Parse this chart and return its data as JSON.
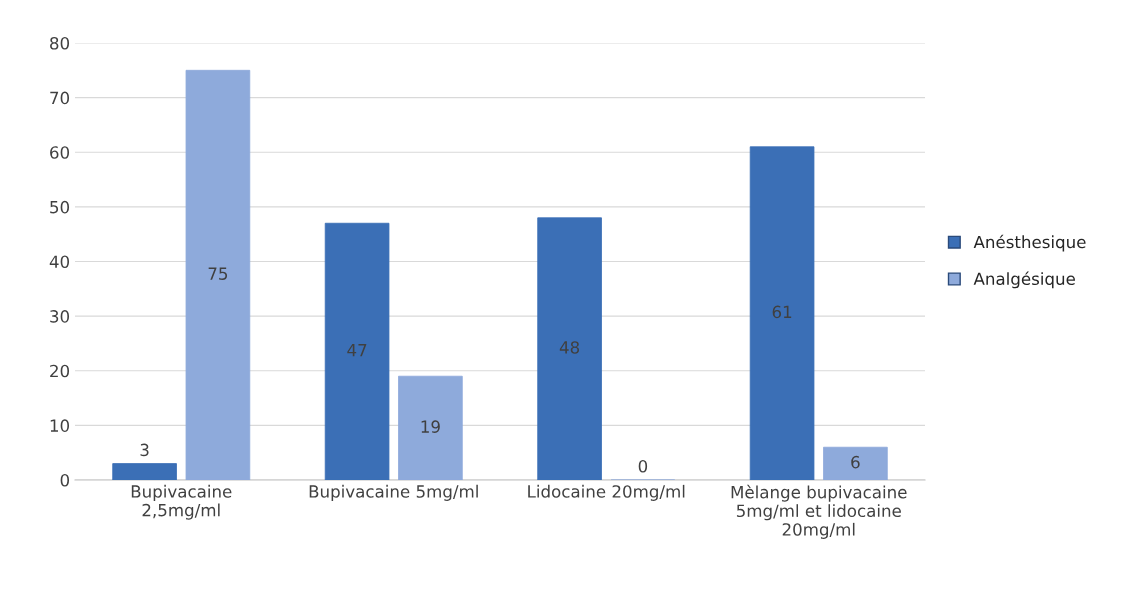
{
  "chart_data": {
    "type": "bar",
    "categories": [
      "Bupivacaine\n2,5mg/ml",
      "Bupivacaine 5mg/ml",
      "Lidocaine 20mg/ml",
      "Mèlange bupivacaine\n5mg/ml et lidocaine\n20mg/ml"
    ],
    "series": [
      {
        "name": "Anésthesique",
        "color": "#3b6fb6",
        "values": [
          3,
          47,
          48,
          61
        ]
      },
      {
        "name": "Analgésique",
        "color": "#8eaadb",
        "values": [
          75,
          19,
          0,
          6
        ]
      }
    ],
    "ylim": [
      0,
      80
    ],
    "yticks": [
      0,
      10,
      20,
      30,
      40,
      50,
      60,
      70,
      80
    ],
    "grid": "y",
    "legend": "right",
    "data_labels": true
  }
}
